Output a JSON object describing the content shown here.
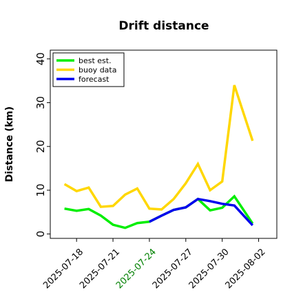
{
  "chart_data": {
    "type": "line",
    "title": "Drift distance",
    "xlabel": "",
    "ylabel": "Distance (km)",
    "ylim": [
      -1,
      42
    ],
    "xlim": [
      "2025-07-15T20:00",
      "2025-08-03T12:00"
    ],
    "grid": false,
    "legend": "top-left",
    "y_ticks": [
      0,
      10,
      20,
      30,
      40
    ],
    "x_ticks": [
      {
        "date": "2025-07-18",
        "label": "2025-07-18",
        "color": "#000000"
      },
      {
        "date": "2025-07-21",
        "label": "2025-07-21",
        "color": "#000000"
      },
      {
        "date": "2025-07-24",
        "label": "2025-07-24",
        "color": "#008000"
      },
      {
        "date": "2025-07-27",
        "label": "2025-07-27",
        "color": "#000000"
      },
      {
        "date": "2025-07-30",
        "label": "2025-07-30",
        "color": "#000000"
      },
      {
        "date": "2025-08-02",
        "label": "2025-08-02",
        "color": "#000000"
      }
    ],
    "series": [
      {
        "name": "best est.",
        "color": "#00ee00",
        "points": [
          {
            "x": "2025-07-17T00:00",
            "y": 5.8
          },
          {
            "x": "2025-07-18T00:00",
            "y": 5.3
          },
          {
            "x": "2025-07-19T00:00",
            "y": 5.7
          },
          {
            "x": "2025-07-20T00:00",
            "y": 4.2
          },
          {
            "x": "2025-07-21T00:00",
            "y": 2.1
          },
          {
            "x": "2025-07-22T00:00",
            "y": 1.4
          },
          {
            "x": "2025-07-23T00:00",
            "y": 2.5
          },
          {
            "x": "2025-07-24T00:00",
            "y": 2.8
          },
          {
            "x": "2025-07-25T00:00",
            "y": 4.2
          },
          {
            "x": "2025-07-26T00:00",
            "y": 5.5
          },
          {
            "x": "2025-07-27T00:00",
            "y": 6.1
          },
          {
            "x": "2025-07-28T00:00",
            "y": 8.0
          },
          {
            "x": "2025-07-29T00:00",
            "y": 5.4
          },
          {
            "x": "2025-07-30T00:00",
            "y": 6.0
          },
          {
            "x": "2025-07-31T00:00",
            "y": 8.6
          },
          {
            "x": "2025-08-01T12:00",
            "y": 2.4
          }
        ]
      },
      {
        "name": "buoy data",
        "color": "#ffd700",
        "points": [
          {
            "x": "2025-07-17T00:00",
            "y": 11.4
          },
          {
            "x": "2025-07-18T00:00",
            "y": 9.8
          },
          {
            "x": "2025-07-19T00:00",
            "y": 10.6
          },
          {
            "x": "2025-07-20T00:00",
            "y": 6.2
          },
          {
            "x": "2025-07-21T00:00",
            "y": 6.4
          },
          {
            "x": "2025-07-22T00:00",
            "y": 9.0
          },
          {
            "x": "2025-07-23T00:00",
            "y": 10.4
          },
          {
            "x": "2025-07-24T00:00",
            "y": 5.8
          },
          {
            "x": "2025-07-25T00:00",
            "y": 5.6
          },
          {
            "x": "2025-07-26T00:00",
            "y": 8.0
          },
          {
            "x": "2025-07-27T00:00",
            "y": 11.6
          },
          {
            "x": "2025-07-28T00:00",
            "y": 16.0
          },
          {
            "x": "2025-07-29T00:00",
            "y": 10.0
          },
          {
            "x": "2025-07-30T00:00",
            "y": 12.0
          },
          {
            "x": "2025-07-31T00:00",
            "y": 34.0
          },
          {
            "x": "2025-08-01T12:00",
            "y": 21.3
          }
        ]
      },
      {
        "name": "forecast",
        "color": "#0000ee",
        "points": [
          {
            "x": "2025-07-24T00:00",
            "y": 2.8
          },
          {
            "x": "2025-07-25T00:00",
            "y": 4.2
          },
          {
            "x": "2025-07-26T00:00",
            "y": 5.5
          },
          {
            "x": "2025-07-27T00:00",
            "y": 6.1
          },
          {
            "x": "2025-07-28T00:00",
            "y": 8.0
          },
          {
            "x": "2025-07-29T00:00",
            "y": 7.5
          },
          {
            "x": "2025-07-30T00:00",
            "y": 6.9
          },
          {
            "x": "2025-07-31T00:00",
            "y": 6.5
          },
          {
            "x": "2025-08-01T12:00",
            "y": 2.0
          }
        ]
      }
    ]
  }
}
